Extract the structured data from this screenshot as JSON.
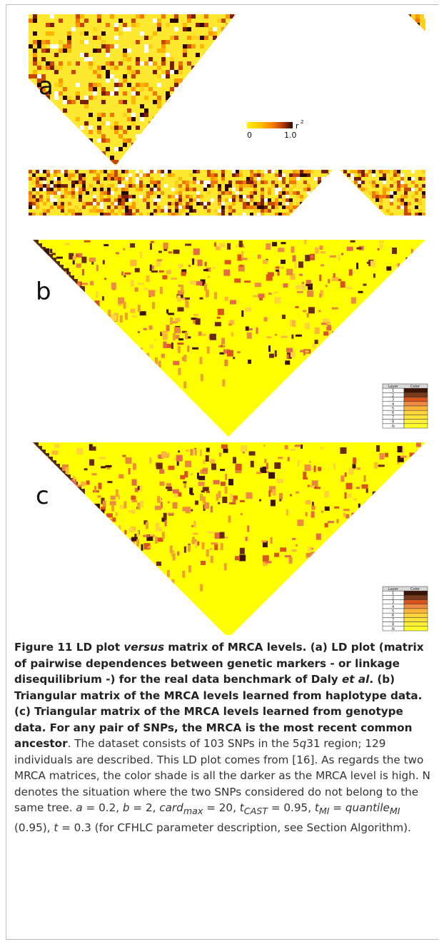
{
  "figure": {
    "panels": [
      {
        "letter": "a",
        "kind": "ld-plot"
      },
      {
        "letter": "b",
        "kind": "mrca-haplotype"
      },
      {
        "letter": "c",
        "kind": "mrca-genotype"
      }
    ],
    "colorbar": {
      "label": "r",
      "exponent": "2",
      "min": "0",
      "max": "1.0",
      "colors": [
        "#fff200",
        "#ffb800",
        "#ff7a00",
        "#c83a00",
        "#3a0a00"
      ]
    },
    "legend": {
      "header_layer": "Layer",
      "header_color": "Color",
      "rows": [
        {
          "layer": "1",
          "color": "#3c1405"
        },
        {
          "layer": "2",
          "color": "#7a3a1a"
        },
        {
          "layer": "3",
          "color": "#d8541c"
        },
        {
          "layer": "4",
          "color": "#ef8a44"
        },
        {
          "layer": "5",
          "color": "#ffb43a"
        },
        {
          "layer": "6",
          "color": "#ffd43a"
        },
        {
          "layer": "7",
          "color": "#ffe23a"
        },
        {
          "layer": "8",
          "color": "#fff03a"
        },
        {
          "layer": "N",
          "color": "#ffff2a"
        }
      ]
    },
    "palette": {
      "yellow": "#ffff00",
      "ld_yellow": "#ffe830",
      "dark": "#3c1405",
      "orange": "#e8863a",
      "salmon": "#e56a4a"
    }
  },
  "caption": {
    "label": "Figure 11",
    "bold_parts": [
      " LD plot ",
      " matrix of MRCA levels. (a) LD plot (matrix of pairwise dependences between genetic markers - or linkage disequilibrium -) for the real data benchmark of Daly ",
      ". (b) Triangular matrix of the MRCA levels learned from haplotype data. (c) Triangular matrix of the MRCA levels learned from genotype data. For any pair of SNPs, the MRCA is the most recent common ancestor"
    ],
    "italic_versus": "versus",
    "italic_etal": "et al",
    "text_1": ". The dataset consists of 103 SNPs in the 5",
    "italic_q": "q",
    "text_2": "31 region; 129 individuals are described. This LD plot comes from [16]. As regards the two MRCA matrices, the color shade is all the darker as the MRCA level is high. N denotes the situation where the two SNPs considered do not belong to the same tree. ",
    "param_a_sym": "a",
    "param_a_val": " = 0.2, ",
    "param_b_sym": "b",
    "param_b_val": " = 2, ",
    "param_card_sym": "card",
    "param_card_sub": "max",
    "param_card_val": " = 20, ",
    "param_tcast_sym": "t",
    "param_tcast_sub": "CAST",
    "param_tcast_val": " = 0.95, ",
    "param_tmi_sym": "t",
    "param_tmi_sub": "MI",
    "param_tmi_eq": " = ",
    "param_quant_sym": "quantile",
    "param_quant_sub": "MI",
    "param_quant_val": " (0.95), ",
    "param_t_sym": "t",
    "param_t_val": " = 0.3 (for CFHLC parameter description, see Section Algorithm)."
  }
}
